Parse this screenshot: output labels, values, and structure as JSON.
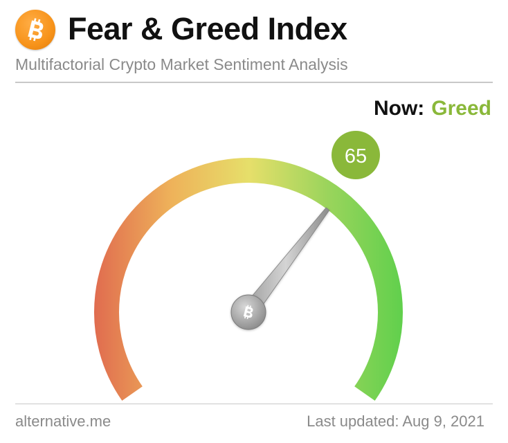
{
  "header": {
    "logo_icon": "bitcoin-icon",
    "title": "Fear & Greed Index",
    "subtitle": "Multifactorial Crypto Market Sentiment Analysis"
  },
  "status": {
    "now_label": "Now:",
    "now_value": "Greed",
    "now_color": "#8ab83a"
  },
  "gauge": {
    "value": 65,
    "value_text": "65",
    "min": 0,
    "max": 100,
    "badge_color": "#8ab83a",
    "hub_icon": "bitcoin-icon",
    "gradient_colors": [
      "#e06b4f",
      "#eeb25a",
      "#e6df6a",
      "#9bd45c",
      "#5fd04c"
    ]
  },
  "footer": {
    "source": "alternative.me",
    "last_updated": "Last updated: Aug 9, 2021"
  }
}
